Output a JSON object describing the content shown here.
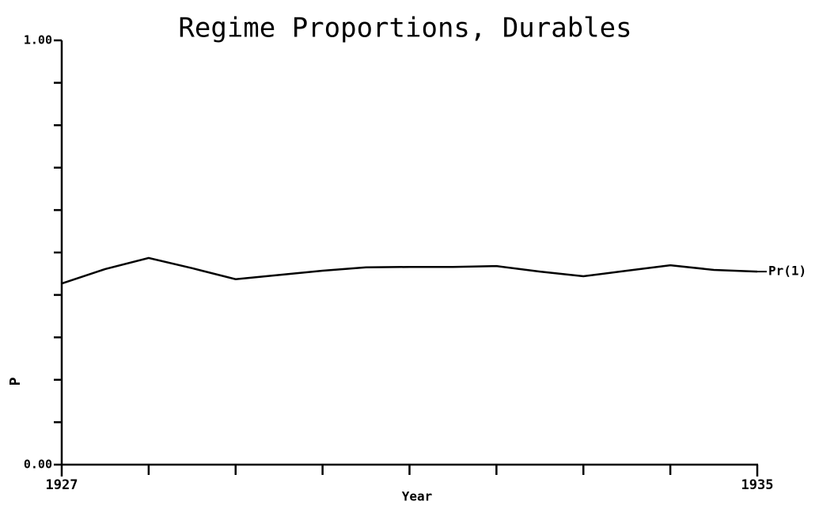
{
  "chart_data": {
    "type": "line",
    "title": "Regime Proportions, Durables",
    "x_label": "Year",
    "y_label": "P",
    "x": [
      1927,
      1927.5,
      1928,
      1928.5,
      1929,
      1929.5,
      1930,
      1930.5,
      1931,
      1931.5,
      1932,
      1932.5,
      1933,
      1933.5,
      1934,
      1934.5,
      1935
    ],
    "series": [
      {
        "name": "Pr(1)",
        "color": "#000000",
        "values": [
          0.427,
          0.461,
          0.487,
          0.463,
          0.437,
          0.447,
          0.457,
          0.465,
          0.466,
          0.466,
          0.468,
          0.455,
          0.444,
          0.457,
          0.47,
          0.459,
          0.455
        ]
      }
    ],
    "xlim": [
      1927,
      1935
    ],
    "ylim": [
      0,
      1
    ],
    "xticks": [
      1927,
      1935
    ],
    "xminor_ticks": [
      1928,
      1929,
      1930,
      1931,
      1932,
      1933,
      1934
    ],
    "yticks": [
      {
        "value": 0,
        "label": "0.00"
      },
      {
        "value": 1,
        "label": "1.00"
      }
    ],
    "yminor_ticks": [
      0.1,
      0.2,
      0.3,
      0.4,
      0.5,
      0.6,
      0.7,
      0.8,
      0.9
    ]
  }
}
